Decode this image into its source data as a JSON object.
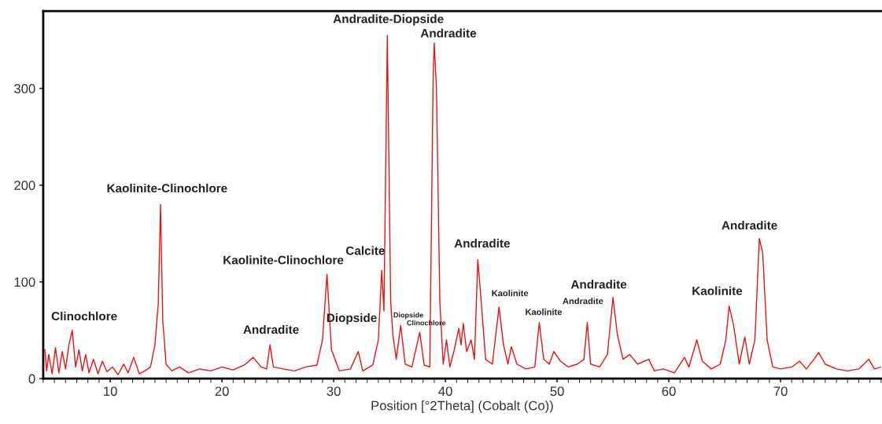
{
  "chart_data": {
    "type": "line",
    "xlabel": "Position [°2Theta] (Cobalt (Co))",
    "xlim": [
      4,
      79
    ],
    "ylim": [
      0,
      380
    ],
    "xticks": [
      10,
      20,
      30,
      40,
      50,
      60,
      70
    ],
    "yticks": [
      0,
      100,
      200,
      300
    ],
    "grid": false,
    "marker": "none",
    "line_style": "solid",
    "series": [
      {
        "color": "#ee1111",
        "x": [
          4.15,
          4.3,
          4.5,
          4.8,
          5.1,
          5.4,
          5.7,
          6.0,
          6.3,
          6.6,
          6.9,
          7.2,
          7.5,
          7.8,
          8.1,
          8.5,
          8.9,
          9.3,
          9.7,
          10.2,
          10.7,
          11.2,
          11.6,
          12.1,
          12.6,
          13.1,
          13.6,
          14.0,
          14.3,
          14.5,
          14.7,
          15.0,
          15.5,
          16.2,
          17.0,
          18.0,
          19.0,
          20.0,
          21.0,
          22.0,
          22.8,
          23.5,
          24.0,
          24.3,
          24.6,
          25.5,
          26.5,
          27.5,
          28.5,
          29.0,
          29.4,
          29.8,
          30.5,
          31.5,
          32.2,
          32.6,
          33.5,
          34.0,
          34.3,
          34.5,
          34.8,
          35.1,
          35.3,
          35.6,
          36.0,
          36.4,
          37.0,
          37.7,
          38.1,
          38.6,
          38.9,
          39.0,
          39.2,
          39.5,
          39.8,
          40.1,
          40.4,
          40.8,
          41.2,
          41.4,
          41.6,
          41.9,
          42.3,
          42.6,
          42.9,
          43.2,
          43.6,
          44.2,
          44.8,
          45.2,
          45.6,
          45.9,
          46.4,
          47.2,
          48.0,
          48.4,
          48.8,
          49.3,
          49.7,
          50.3,
          51.0,
          51.8,
          52.4,
          52.7,
          53.0,
          53.8,
          54.5,
          55.0,
          55.4,
          55.9,
          56.5,
          57.2,
          58.2,
          58.7,
          59.5,
          60.5,
          61.4,
          61.8,
          62.5,
          63.0,
          63.8,
          64.6,
          65.1,
          65.4,
          65.8,
          66.3,
          66.8,
          67.2,
          67.7,
          68.1,
          68.4,
          68.8,
          69.3,
          70.0,
          71.0,
          71.7,
          72.3,
          73.0,
          73.4,
          74.0,
          75.0,
          76.0,
          77.0,
          77.9,
          78.4,
          79.0
        ],
        "values": [
          30,
          8,
          25,
          5,
          32,
          6,
          28,
          10,
          35,
          50,
          12,
          30,
          8,
          25,
          6,
          20,
          5,
          18,
          7,
          12,
          4,
          15,
          6,
          22,
          5,
          8,
          12,
          35,
          78,
          180,
          60,
          15,
          8,
          12,
          6,
          10,
          8,
          12,
          9,
          14,
          22,
          12,
          10,
          35,
          12,
          10,
          8,
          12,
          14,
          40,
          108,
          30,
          8,
          10,
          28,
          8,
          14,
          40,
          112,
          70,
          355,
          80,
          45,
          20,
          55,
          15,
          12,
          48,
          14,
          12,
          310,
          347,
          300,
          80,
          15,
          40,
          12,
          30,
          52,
          35,
          57,
          28,
          40,
          20,
          123,
          80,
          20,
          15,
          74,
          35,
          15,
          33,
          15,
          10,
          12,
          58,
          20,
          15,
          28,
          18,
          12,
          15,
          20,
          58,
          15,
          12,
          25,
          84,
          45,
          20,
          25,
          15,
          20,
          8,
          10,
          6,
          22,
          12,
          40,
          18,
          10,
          15,
          40,
          75,
          55,
          15,
          43,
          15,
          40,
          145,
          130,
          40,
          12,
          10,
          12,
          18,
          10,
          20,
          27,
          15,
          10,
          8,
          10,
          20,
          10,
          12
        ]
      }
    ],
    "annotations": [
      {
        "text": "Clinochlore",
        "x": 6.6,
        "y": 50
      },
      {
        "text": "Kaolinite-Clinochlore",
        "x": 14.5,
        "y": 180
      },
      {
        "text": "Andradite",
        "x": 24.3,
        "y": 35
      },
      {
        "text": "Kaolinite-Clinochlore",
        "x": 29.4,
        "y": 108
      },
      {
        "text": "Diopside",
        "x": 32.2,
        "y": 28
      },
      {
        "text": "Calcite",
        "x": 34.3,
        "y": 112
      },
      {
        "text": "Andradite-Diopside",
        "x": 34.8,
        "y": 355
      },
      {
        "text": "Diopside",
        "x": 36.0,
        "y": 55
      },
      {
        "text": "Clinochlore",
        "x": 37.7,
        "y": 48
      },
      {
        "text": "Andradite",
        "x": 39.0,
        "y": 347
      },
      {
        "text": "Andradite",
        "x": 42.9,
        "y": 123
      },
      {
        "text": "Kaolinite",
        "x": 44.8,
        "y": 74
      },
      {
        "text": "Kaolinite",
        "x": 48.4,
        "y": 58
      },
      {
        "text": "Andradite",
        "x": 52.7,
        "y": 58
      },
      {
        "text": "Andradite",
        "x": 55.0,
        "y": 84
      },
      {
        "text": "Kaolinite",
        "x": 65.4,
        "y": 75
      },
      {
        "text": "Andradite",
        "x": 68.1,
        "y": 145
      }
    ]
  }
}
